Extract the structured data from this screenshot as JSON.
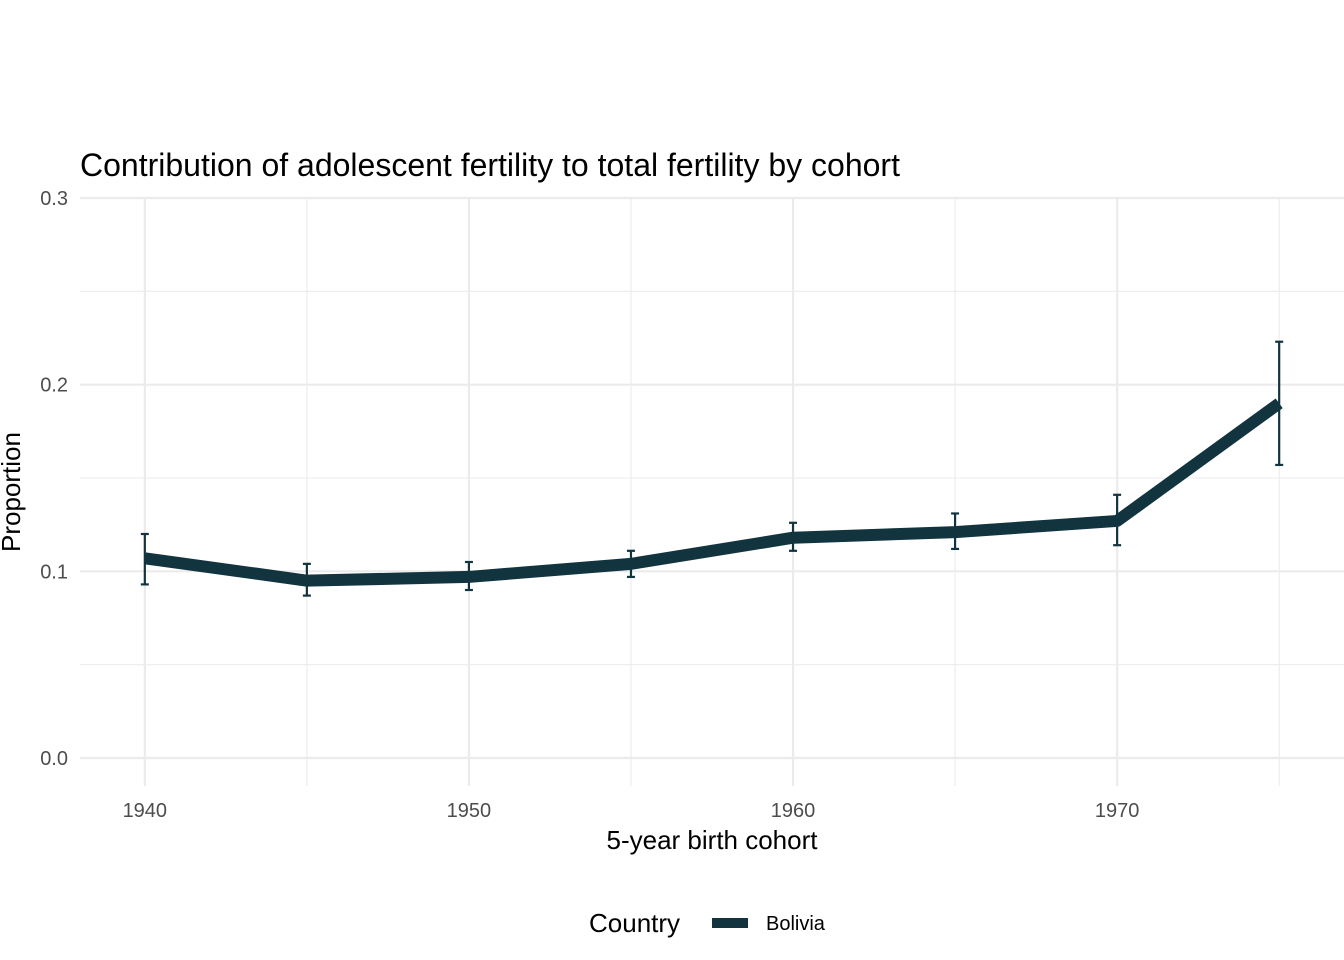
{
  "chart_data": {
    "type": "line",
    "title": "Contribution of adolescent fertility to total fertility by cohort",
    "xlabel": "5-year birth cohort",
    "ylabel": "Proportion",
    "x": [
      1940,
      1945,
      1950,
      1955,
      1960,
      1965,
      1970,
      1975
    ],
    "xlim": [
      1938,
      1977
    ],
    "ylim": [
      -0.015,
      0.3
    ],
    "x_ticks": [
      1940,
      1950,
      1960,
      1970
    ],
    "x_tick_labels": [
      "1940",
      "1950",
      "1960",
      "1970"
    ],
    "y_ticks": [
      0.0,
      0.1,
      0.2,
      0.3
    ],
    "y_tick_labels": [
      "0.0",
      "0.1",
      "0.2",
      "0.3"
    ],
    "grid": true,
    "legend": {
      "title": "Country",
      "position": "bottom"
    },
    "series": [
      {
        "name": "Bolivia",
        "color": "#12343f",
        "values": [
          0.107,
          0.095,
          0.097,
          0.104,
          0.118,
          0.121,
          0.127,
          0.19
        ],
        "error_low": [
          0.093,
          0.087,
          0.09,
          0.097,
          0.111,
          0.112,
          0.114,
          0.157
        ],
        "error_high": [
          0.12,
          0.104,
          0.105,
          0.111,
          0.126,
          0.131,
          0.141,
          0.223
        ]
      }
    ]
  }
}
